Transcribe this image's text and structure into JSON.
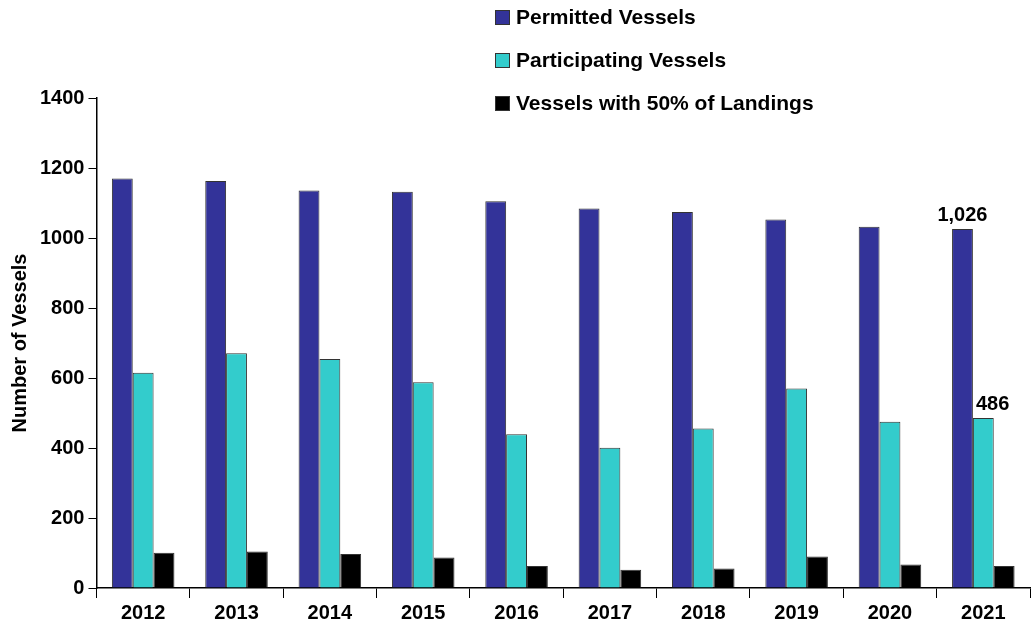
{
  "chart_data": {
    "type": "bar",
    "ylabel": "Number of Vessels",
    "categories": [
      "2012",
      "2013",
      "2014",
      "2015",
      "2016",
      "2017",
      "2018",
      "2019",
      "2020",
      "2021"
    ],
    "series": [
      {
        "name": "Permitted Vessels",
        "color": "#333399",
        "values": [
          1170,
          1163,
          1136,
          1132,
          1105,
          1084,
          1074,
          1053,
          1032,
          1026
        ],
        "value_labels": [
          null,
          null,
          null,
          null,
          null,
          null,
          null,
          null,
          null,
          "1,026"
        ]
      },
      {
        "name": "Participating Vessels",
        "color": "#33cccc",
        "values": [
          615,
          671,
          654,
          588,
          439,
          401,
          456,
          570,
          475,
          486
        ],
        "value_labels": [
          null,
          null,
          null,
          null,
          null,
          null,
          null,
          null,
          null,
          "486"
        ]
      },
      {
        "name": "Vessels with 50% of Landings",
        "color": "#000000",
        "values": [
          101,
          104,
          97,
          87,
          63,
          52,
          56,
          90,
          67,
          63
        ]
      }
    ],
    "ylim": [
      0,
      1400
    ],
    "yticks": [
      0,
      200,
      400,
      600,
      800,
      1000,
      1200,
      1400
    ],
    "grid": false,
    "legend": "top right"
  }
}
